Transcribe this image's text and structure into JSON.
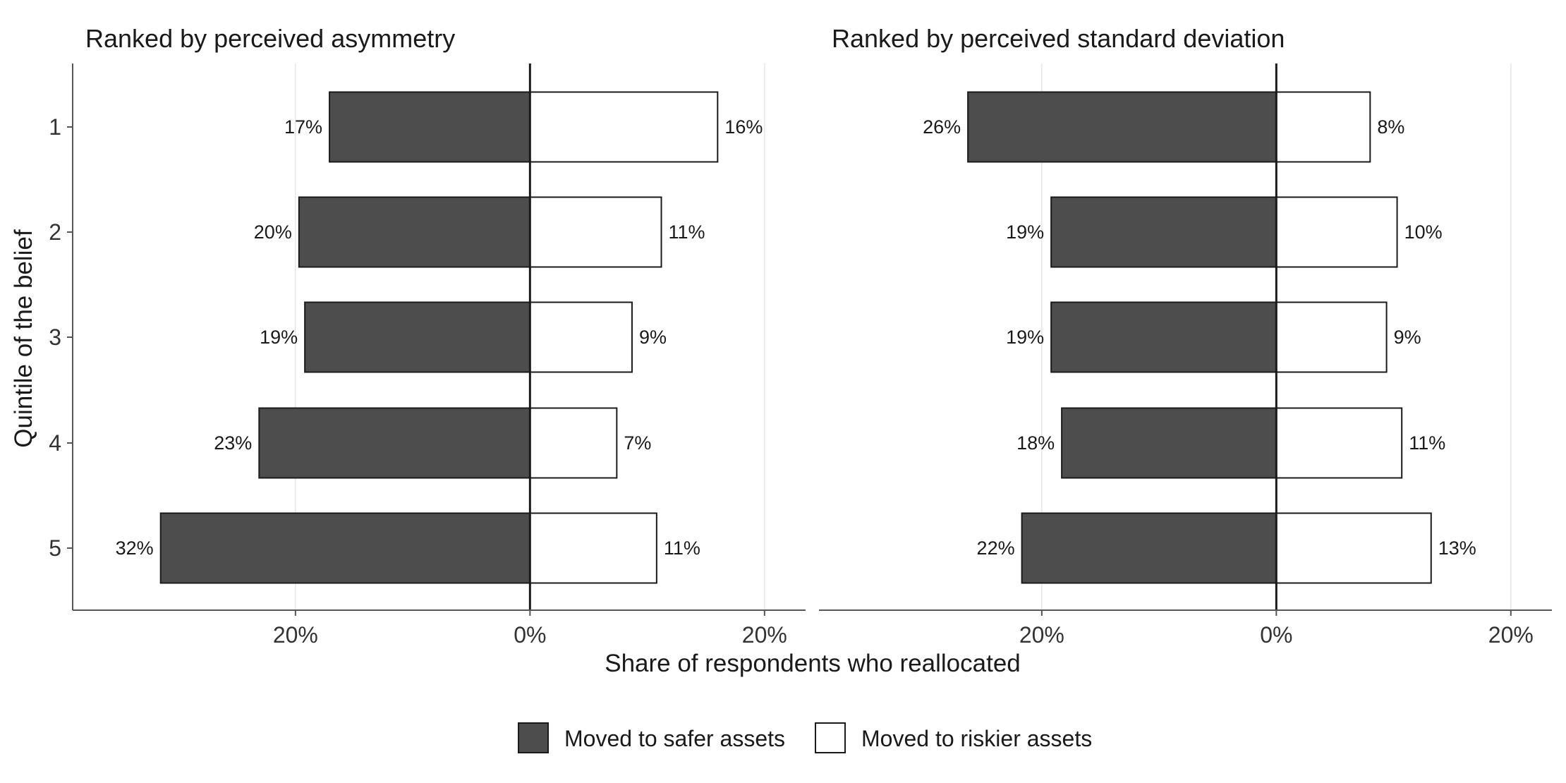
{
  "chart_data": {
    "type": "bar",
    "orientation": "horizontal-diverging",
    "ylabel": "Quintile of the belief",
    "xlabel": "Share of respondents who reallocated",
    "categories": [
      "1",
      "2",
      "3",
      "4",
      "5"
    ],
    "xlim": [
      -0.39,
      0.235
    ],
    "x_ticks": [
      {
        "value": -0.2,
        "label": "20%"
      },
      {
        "value": 0,
        "label": "0%"
      },
      {
        "value": 0.2,
        "label": "20%"
      }
    ],
    "grid": "vertical major gridlines",
    "legend_position": "bottom",
    "series_styles": {
      "safer": {
        "fill": "#4d4d4d",
        "stroke": "#1a1a1a"
      },
      "riskier": {
        "fill": "#ffffff",
        "stroke": "#1a1a1a"
      }
    },
    "legend": [
      {
        "key": "safer",
        "label": "Moved to safer assets"
      },
      {
        "key": "riskier",
        "label": "Moved to riskier assets"
      }
    ],
    "panels": [
      {
        "title": "Ranked by perceived asymmetry",
        "series": [
          {
            "name": "Moved to safer assets",
            "key": "safer",
            "direction": -1,
            "values": [
              0.171,
              0.197,
              0.192,
              0.231,
              0.315
            ],
            "labels": [
              "17%",
              "20%",
              "19%",
              "23%",
              "32%"
            ]
          },
          {
            "name": "Moved to riskier assets",
            "key": "riskier",
            "direction": 1,
            "values": [
              0.16,
              0.112,
              0.087,
              0.074,
              0.108
            ],
            "labels": [
              "16%",
              "11%",
              "9%",
              "7%",
              "11%"
            ]
          }
        ]
      },
      {
        "title": "Ranked by perceived standard deviation",
        "series": [
          {
            "name": "Moved to safer assets",
            "key": "safer",
            "direction": -1,
            "values": [
              0.263,
              0.192,
              0.192,
              0.183,
              0.217
            ],
            "labels": [
              "26%",
              "19%",
              "19%",
              "18%",
              "22%"
            ]
          },
          {
            "name": "Moved to riskier assets",
            "key": "riskier",
            "direction": 1,
            "values": [
              0.08,
              0.103,
              0.094,
              0.107,
              0.132
            ],
            "labels": [
              "8%",
              "10%",
              "9%",
              "11%",
              "13%"
            ]
          }
        ]
      }
    ]
  }
}
